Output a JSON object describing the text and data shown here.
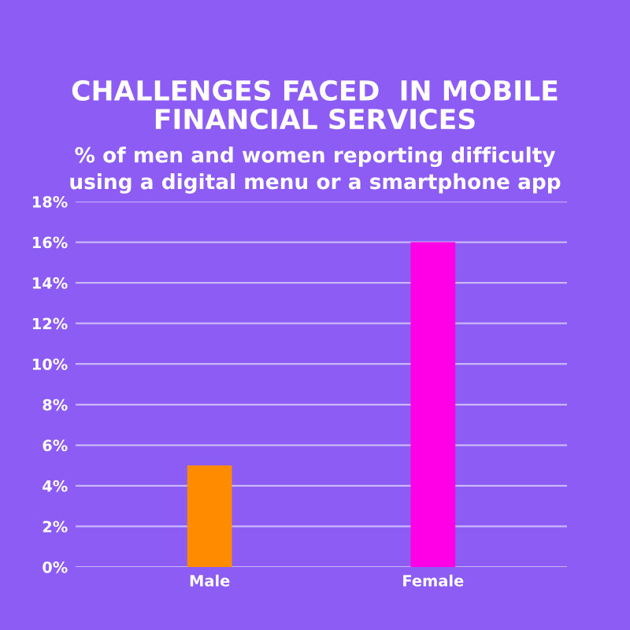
{
  "chart_data": {
    "type": "bar",
    "title": "CHALLENGES FACED  IN MOBILE\nFINANCIAL SERVICES",
    "subtitle": "% of men and women reporting difficulty\nusing a digital menu or a smartphone app",
    "categories": [
      "Male",
      "Female"
    ],
    "values": [
      5,
      16
    ],
    "colors": [
      "#ff8c00",
      "#ff00e6"
    ],
    "ylim": [
      0,
      18
    ],
    "yticks": [
      {
        "value": 0,
        "label": "0%"
      },
      {
        "value": 2,
        "label": "2%"
      },
      {
        "value": 4,
        "label": "4%"
      },
      {
        "value": 6,
        "label": "6%"
      },
      {
        "value": 8,
        "label": "8%"
      },
      {
        "value": 10,
        "label": "10%"
      },
      {
        "value": 12,
        "label": "12%"
      },
      {
        "value": 14,
        "label": "14%"
      },
      {
        "value": 16,
        "label": "16%"
      },
      {
        "value": 18,
        "label": "18%"
      }
    ],
    "grid": "y",
    "legend": false
  }
}
